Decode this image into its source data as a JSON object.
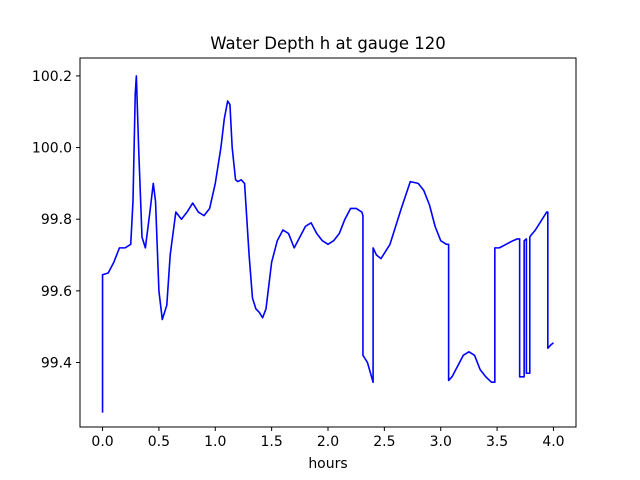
{
  "chart_data": {
    "type": "line",
    "title": "Water Depth h at gauge 120",
    "xlabel": "hours",
    "ylabel": "",
    "xlim": [
      -0.2,
      4.2
    ],
    "ylim": [
      99.22,
      100.25
    ],
    "xticks": [
      0.0,
      0.5,
      1.0,
      1.5,
      2.0,
      2.5,
      3.0,
      3.5,
      4.0
    ],
    "xtick_labels": [
      "0.0",
      "0.5",
      "1.0",
      "1.5",
      "2.0",
      "2.5",
      "3.0",
      "3.5",
      "4.0"
    ],
    "yticks": [
      99.4,
      99.6,
      99.8,
      100.0,
      100.2
    ],
    "ytick_labels": [
      "99.4",
      "99.6",
      "99.8",
      "100.0",
      "100.2"
    ],
    "grid": false,
    "series": [
      {
        "color": "#0000ff",
        "x": [
          0.0,
          0.0,
          0.05,
          0.1,
          0.15,
          0.2,
          0.25,
          0.27,
          0.29,
          0.3,
          0.32,
          0.35,
          0.38,
          0.42,
          0.45,
          0.47,
          0.5,
          0.53,
          0.57,
          0.6,
          0.65,
          0.7,
          0.75,
          0.8,
          0.85,
          0.9,
          0.95,
          1.0,
          1.05,
          1.08,
          1.11,
          1.13,
          1.15,
          1.18,
          1.2,
          1.23,
          1.26,
          1.3,
          1.33,
          1.36,
          1.39,
          1.42,
          1.45,
          1.5,
          1.55,
          1.6,
          1.65,
          1.7,
          1.75,
          1.8,
          1.85,
          1.9,
          1.95,
          2.0,
          2.05,
          2.1,
          2.15,
          2.2,
          2.25,
          2.3,
          2.31,
          2.31,
          2.35,
          2.4,
          2.4,
          2.43,
          2.47,
          2.55,
          2.65,
          2.73,
          2.8,
          2.85,
          2.9,
          2.95,
          3.0,
          3.05,
          3.07,
          3.07,
          3.1,
          3.15,
          3.2,
          3.25,
          3.3,
          3.35,
          3.4,
          3.45,
          3.48,
          3.48,
          3.52,
          3.58,
          3.64,
          3.68,
          3.7,
          3.7,
          3.74,
          3.74,
          3.76,
          3.76,
          3.79,
          3.79,
          3.8,
          3.84,
          3.88,
          3.92,
          3.94,
          3.95,
          3.95,
          3.98,
          4.0
        ],
        "y": [
          99.26,
          99.645,
          99.65,
          99.68,
          99.72,
          99.72,
          99.73,
          99.85,
          100.15,
          100.2,
          100.0,
          99.75,
          99.72,
          99.82,
          99.9,
          99.85,
          99.6,
          99.52,
          99.56,
          99.7,
          99.82,
          99.8,
          99.82,
          99.845,
          99.82,
          99.81,
          99.83,
          99.9,
          100.0,
          100.08,
          100.13,
          100.12,
          100.0,
          99.91,
          99.905,
          99.91,
          99.9,
          99.7,
          99.58,
          99.55,
          99.54,
          99.525,
          99.55,
          99.68,
          99.74,
          99.77,
          99.76,
          99.72,
          99.75,
          99.78,
          99.79,
          99.76,
          99.74,
          99.73,
          99.74,
          99.76,
          99.8,
          99.83,
          99.83,
          99.82,
          99.81,
          99.42,
          99.4,
          99.345,
          99.72,
          99.7,
          99.69,
          99.73,
          99.83,
          99.905,
          99.9,
          99.88,
          99.84,
          99.78,
          99.74,
          99.73,
          99.73,
          99.35,
          99.36,
          99.39,
          99.42,
          99.43,
          99.42,
          99.38,
          99.36,
          99.345,
          99.345,
          99.72,
          99.72,
          99.73,
          99.74,
          99.745,
          99.745,
          99.36,
          99.36,
          99.74,
          99.745,
          99.37,
          99.37,
          99.75,
          99.755,
          99.77,
          99.79,
          99.81,
          99.82,
          99.82,
          99.44,
          99.45,
          99.455
        ]
      }
    ]
  }
}
